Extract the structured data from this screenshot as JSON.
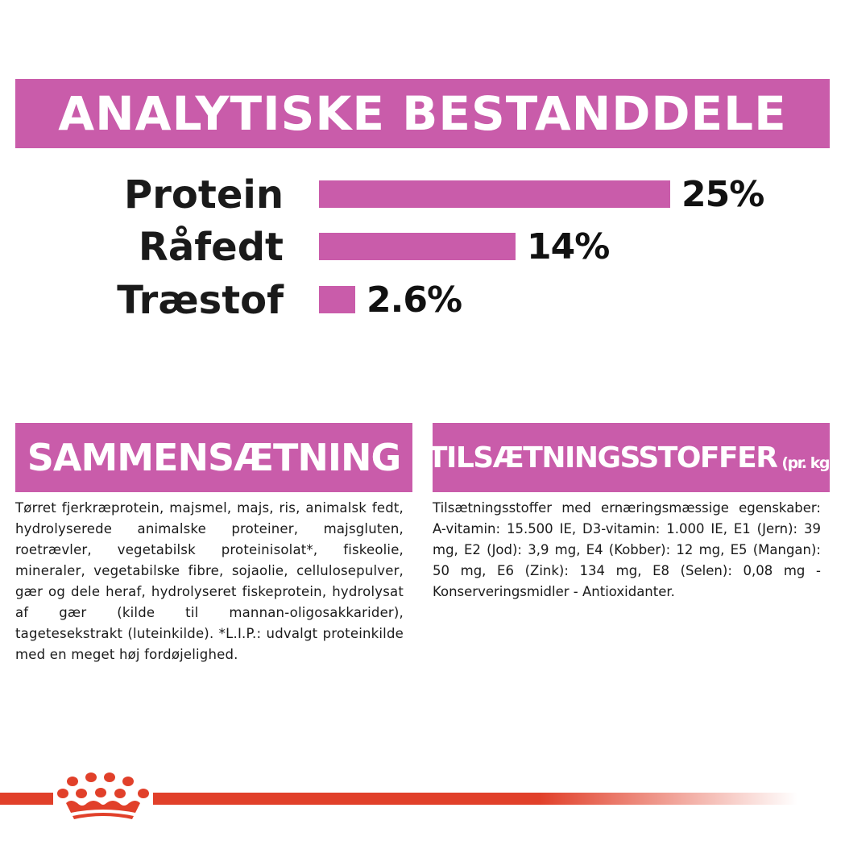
{
  "analytical": {
    "title": "ANALYTISKE BESTANDDELE",
    "rows": [
      {
        "label": "Protein",
        "value_text": "25%",
        "value": 25
      },
      {
        "label": "Råfedt",
        "value_text": "14%",
        "value": 14
      },
      {
        "label": "Træstof",
        "value_text": "2.6%",
        "value": 2.6
      }
    ]
  },
  "composition": {
    "title": "SAMMENSÆTNING",
    "text": "Tørret fjerkræprotein, majsmel, majs, ris, animalsk fedt, hydrolyserede animalske proteiner, majsgluten, roetrævler, vegetabilsk proteinisolat*, fiskeolie, mineraler, vegetabilske fibre, sojaolie, cellulosepulver, gær og dele heraf, hydrolyseret fiskeprotein, hydrolysat af gær (kilde til mannan-oligosakkarider), tagetesekstrakt (luteinkilde). *L.I.P.: udvalgt proteinkilde med en meget høj fordøjelighed."
  },
  "additives": {
    "title": "TILSÆTNINGSSTOFFER",
    "unit": "(pr. kg)",
    "text": "Tilsætningsstoffer med ernæringsmæssige egenskaber: A-vitamin: 15.500 IE, D3-vitamin: 1.000 IE, E1 (Jern): 39 mg, E2 (Jod): 3,9 mg, E4 (Kobber): 12 mg, E5 (Mangan): 50 mg, E6 (Zink): 134 mg, E8 (Selen): 0,08 mg - Konserveringsmidler - Antioxidanter."
  },
  "colors": {
    "accent": "#c95caa",
    "brand_red": "#e1402a"
  },
  "icons": {
    "logo": "royal-canin-crown-logo"
  }
}
